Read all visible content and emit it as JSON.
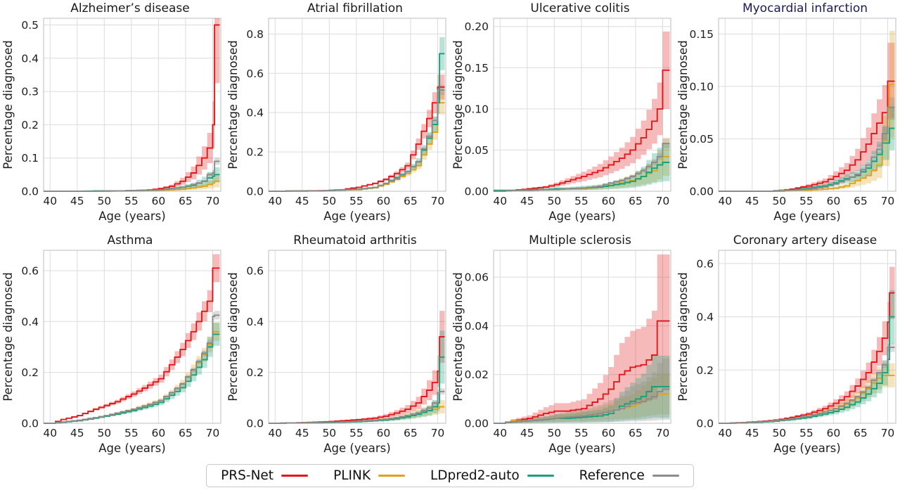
{
  "figure": {
    "background": "#ffffff",
    "grid_color": "#dcdcdc",
    "spine_color": "#c9c9c9",
    "band_alpha": 0.3,
    "tick_text_color": "#1f1f1f",
    "default_title_color": "#1a1a1a",
    "highlight_title_color": "#1b1b52"
  },
  "axes": {
    "xlabel": "Age (years)",
    "ylabel": "Percentage diagnosed",
    "x_ticks": [
      40,
      45,
      50,
      55,
      60,
      65,
      70
    ],
    "x_range": [
      38.8,
      71.5
    ],
    "control_ages": [
      40,
      42,
      45,
      48,
      50,
      52,
      55,
      58,
      60,
      62,
      64,
      66,
      68,
      69,
      70
    ]
  },
  "legend": {
    "items": [
      {
        "label": "PRS-Net",
        "color": "#e2191c"
      },
      {
        "label": "PLINK",
        "color": "#dfa21e"
      },
      {
        "label": "LDpred2-auto",
        "color": "#16a17b"
      },
      {
        "label": "Reference",
        "color": "#8b8b8b"
      }
    ]
  },
  "chart_data": [
    {
      "type": "line",
      "title": "Alzheimer’s disease",
      "title_color": "#1a1a1a",
      "ylim": [
        0,
        0.52
      ],
      "yticks": [
        0.0,
        0.1,
        0.2,
        0.3,
        0.4,
        0.5
      ],
      "ytick_decimals": 1,
      "series": [
        {
          "name": "PRS-Net",
          "values": [
            0,
            0,
            0,
            0,
            0.001,
            0.001,
            0.002,
            0.004,
            0.008,
            0.015,
            0.03,
            0.055,
            0.1,
            0.13,
            0.2
          ],
          "end": 0.5,
          "ci": 0.35
        },
        {
          "name": "PLINK",
          "values": [
            0,
            0,
            0,
            0,
            0,
            0.001,
            0.001,
            0.002,
            0.003,
            0.004,
            0.006,
            0.01,
            0.015,
            0.02,
            0.025
          ],
          "end": 0.03,
          "ci": 0.6
        },
        {
          "name": "LDpred2-auto",
          "values": [
            0,
            0,
            0,
            0.001,
            0.001,
            0.001,
            0.002,
            0.003,
            0.004,
            0.008,
            0.012,
            0.018,
            0.03,
            0.04,
            0.045
          ],
          "end": 0.05,
          "ci": 0.45
        },
        {
          "name": "Reference",
          "values": [
            0,
            0,
            0,
            0,
            0.001,
            0.001,
            0.002,
            0.003,
            0.004,
            0.008,
            0.012,
            0.02,
            0.03,
            0.05,
            0.055
          ],
          "end": 0.09,
          "ci": 0.12
        }
      ]
    },
    {
      "type": "line",
      "title": "Atrial fibrillation",
      "title_color": "#1a1a1a",
      "ylim": [
        0,
        0.88
      ],
      "yticks": [
        0.0,
        0.2,
        0.4,
        0.6,
        0.8
      ],
      "ytick_decimals": 1,
      "series": [
        {
          "name": "PRS-Net",
          "values": [
            0,
            0.001,
            0.002,
            0.003,
            0.005,
            0.008,
            0.02,
            0.04,
            0.06,
            0.09,
            0.13,
            0.24,
            0.37,
            0.45,
            0.53
          ],
          "end": 0.53,
          "ci": 0.12
        },
        {
          "name": "PLINK",
          "values": [
            0,
            0.001,
            0.001,
            0.002,
            0.004,
            0.006,
            0.008,
            0.018,
            0.035,
            0.06,
            0.09,
            0.13,
            0.24,
            0.3,
            0.45
          ],
          "end": 0.45,
          "ci": 0.13
        },
        {
          "name": "LDpred2-auto",
          "values": [
            0,
            0.001,
            0.001,
            0.002,
            0.004,
            0.006,
            0.01,
            0.02,
            0.04,
            0.07,
            0.1,
            0.15,
            0.27,
            0.34,
            0.45
          ],
          "end": 0.7,
          "ci": 0.12
        },
        {
          "name": "Reference",
          "values": [
            0,
            0.001,
            0.001,
            0.002,
            0.005,
            0.007,
            0.01,
            0.02,
            0.04,
            0.065,
            0.1,
            0.15,
            0.28,
            0.36,
            0.515
          ],
          "end": 0.515,
          "ci": 0.05
        }
      ]
    },
    {
      "type": "line",
      "title": "Ulcerative colitis",
      "title_color": "#1a1a1a",
      "ylim": [
        0,
        0.21
      ],
      "yticks": [
        0.0,
        0.05,
        0.1,
        0.15,
        0.2
      ],
      "ytick_decimals": 2,
      "series": [
        {
          "name": "PRS-Net",
          "values": [
            0.001,
            0.001,
            0.003,
            0.005,
            0.008,
            0.012,
            0.018,
            0.025,
            0.032,
            0.04,
            0.05,
            0.065,
            0.085,
            0.1,
            0.147
          ],
          "end": 0.147,
          "ci": 0.32
        },
        {
          "name": "PLINK",
          "values": [
            0,
            0.001,
            0.001,
            0.002,
            0.002,
            0.003,
            0.003,
            0.005,
            0.007,
            0.01,
            0.013,
            0.018,
            0.025,
            0.032,
            0.042
          ],
          "end": 0.042,
          "ci": 0.55
        },
        {
          "name": "LDpred2-auto",
          "values": [
            0.001,
            0.001,
            0.002,
            0.002,
            0.003,
            0.003,
            0.004,
            0.005,
            0.007,
            0.009,
            0.012,
            0.018,
            0.028,
            0.032,
            0.035
          ],
          "end": 0.035,
          "ci": 0.65
        },
        {
          "name": "Reference",
          "values": [
            0,
            0.001,
            0.001,
            0.002,
            0.002,
            0.003,
            0.004,
            0.006,
            0.01,
            0.013,
            0.018,
            0.025,
            0.035,
            0.042,
            0.058
          ],
          "end": 0.058,
          "ci": 0.1
        }
      ]
    },
    {
      "type": "line",
      "title": "Myocardial infarction",
      "title_color": "#1b1b52",
      "ylim": [
        0,
        0.165
      ],
      "yticks": [
        0.0,
        0.05,
        0.1,
        0.15
      ],
      "ytick_decimals": 2,
      "series": [
        {
          "name": "PRS-Net",
          "values": [
            0,
            0,
            0,
            0,
            0.001,
            0.002,
            0.005,
            0.009,
            0.014,
            0.02,
            0.03,
            0.045,
            0.065,
            0.075,
            0.105
          ],
          "end": 0.105,
          "ci": 0.35
        },
        {
          "name": "PLINK",
          "values": [
            0,
            0,
            0,
            0,
            0,
            0.001,
            0.001,
            0.002,
            0.003,
            0.005,
            0.01,
            0.015,
            0.025,
            0.048,
            0.048
          ],
          "end": 0.102,
          "ci": 0.5
        },
        {
          "name": "LDpred2-auto",
          "values": [
            0,
            0,
            0,
            0,
            0.001,
            0.001,
            0.003,
            0.005,
            0.008,
            0.012,
            0.015,
            0.022,
            0.035,
            0.046,
            0.046
          ],
          "end": 0.06,
          "ci": 0.35
        },
        {
          "name": "Reference",
          "values": [
            0,
            0,
            0,
            0,
            0.001,
            0.001,
            0.002,
            0.004,
            0.007,
            0.011,
            0.016,
            0.025,
            0.04,
            0.055,
            0.08
          ],
          "end": 0.08,
          "ci": 0.12
        }
      ]
    },
    {
      "type": "line",
      "title": "Asthma",
      "title_color": "#1a1a1a",
      "ylim": [
        0,
        0.68
      ],
      "yticks": [
        0.0,
        0.2,
        0.4,
        0.6
      ],
      "ytick_decimals": 1,
      "series": [
        {
          "name": "PRS-Net",
          "values": [
            0,
            0.015,
            0.03,
            0.055,
            0.07,
            0.085,
            0.115,
            0.15,
            0.175,
            0.23,
            0.29,
            0.36,
            0.44,
            0.48,
            0.61
          ],
          "end": 0.61,
          "ci": 0.09
        },
        {
          "name": "PLINK",
          "values": [
            0,
            0.005,
            0.012,
            0.022,
            0.03,
            0.04,
            0.055,
            0.075,
            0.09,
            0.12,
            0.155,
            0.21,
            0.27,
            0.31,
            0.36
          ],
          "end": 0.36,
          "ci": 0.1
        },
        {
          "name": "LDpred2-auto",
          "values": [
            0,
            0.004,
            0.01,
            0.02,
            0.028,
            0.036,
            0.05,
            0.068,
            0.082,
            0.11,
            0.14,
            0.19,
            0.25,
            0.3,
            0.35
          ],
          "end": 0.35,
          "ci": 0.13
        },
        {
          "name": "Reference",
          "values": [
            0,
            0.005,
            0.012,
            0.022,
            0.03,
            0.04,
            0.055,
            0.075,
            0.09,
            0.12,
            0.155,
            0.21,
            0.275,
            0.315,
            0.42
          ],
          "end": 0.425,
          "ci": 0.04
        }
      ]
    },
    {
      "type": "line",
      "title": "Rheumatoid arthritis",
      "title_color": "#1a1a1a",
      "ylim": [
        0,
        0.68
      ],
      "yticks": [
        0.0,
        0.2,
        0.4,
        0.6
      ],
      "ytick_decimals": 1,
      "series": [
        {
          "name": "PRS-Net",
          "values": [
            0,
            0.001,
            0.003,
            0.005,
            0.007,
            0.01,
            0.014,
            0.02,
            0.028,
            0.04,
            0.055,
            0.08,
            0.13,
            0.16,
            0.205
          ],
          "end": 0.34,
          "ci": 0.3
        },
        {
          "name": "PLINK",
          "values": [
            0,
            0.001,
            0.002,
            0.003,
            0.004,
            0.005,
            0.007,
            0.011,
            0.015,
            0.02,
            0.028,
            0.04,
            0.05,
            0.055,
            0.06
          ],
          "end": 0.065,
          "ci": 0.4
        },
        {
          "name": "LDpred2-auto",
          "values": [
            0,
            0.001,
            0.002,
            0.002,
            0.003,
            0.004,
            0.006,
            0.01,
            0.013,
            0.018,
            0.025,
            0.035,
            0.05,
            0.065,
            0.08
          ],
          "end": 0.26,
          "ci": 0.4
        },
        {
          "name": "Reference",
          "values": [
            0,
            0.001,
            0.002,
            0.003,
            0.004,
            0.005,
            0.008,
            0.012,
            0.016,
            0.022,
            0.03,
            0.04,
            0.06,
            0.08,
            0.12
          ],
          "end": 0.125,
          "ci": 0.1
        }
      ]
    },
    {
      "type": "line",
      "title": "Multiple sclerosis",
      "title_color": "#1a1a1a",
      "ylim": [
        0,
        0.071
      ],
      "yticks": [
        0.0,
        0.02,
        0.04,
        0.06
      ],
      "ytick_decimals": 2,
      "series": [
        {
          "name": "PRS-Net",
          "values": [
            0,
            0.001,
            0.002,
            0.004,
            0.005,
            0.005,
            0.006,
            0.01,
            0.014,
            0.02,
            0.023,
            0.024,
            0.028,
            0.042,
            0.042
          ],
          "end": 0.042,
          "ci": 0.65
        },
        {
          "name": "PLINK",
          "values": [
            0,
            0.001,
            0.001,
            0.0015,
            0.002,
            0.0025,
            0.003,
            0.004,
            0.005,
            0.006,
            0.007,
            0.009,
            0.011,
            0.012,
            0.012
          ],
          "end": 0.012,
          "ci": 0.7
        },
        {
          "name": "LDpred2-auto",
          "values": [
            0,
            0.0005,
            0.001,
            0.0015,
            0.002,
            0.002,
            0.0025,
            0.003,
            0.004,
            0.007,
            0.009,
            0.011,
            0.015,
            0.015,
            0.015
          ],
          "end": 0.015,
          "ci": 0.85
        },
        {
          "name": "Reference",
          "values": [
            0,
            0.0005,
            0.001,
            0.0015,
            0.002,
            0.0025,
            0.003,
            0.004,
            0.005,
            0.006,
            0.008,
            0.009,
            0.011,
            0.013,
            0.014
          ],
          "end": 0.014,
          "ci": 0.9
        }
      ]
    },
    {
      "type": "line",
      "title": "Coronary artery disease",
      "title_color": "#1a1a1a",
      "ylim": [
        0,
        0.65
      ],
      "yticks": [
        0.0,
        0.2,
        0.4,
        0.6
      ],
      "ytick_decimals": 1,
      "series": [
        {
          "name": "PRS-Net",
          "values": [
            0,
            0.002,
            0.005,
            0.01,
            0.015,
            0.022,
            0.035,
            0.055,
            0.075,
            0.1,
            0.14,
            0.19,
            0.27,
            0.32,
            0.38
          ],
          "end": 0.49,
          "ci": 0.2
        },
        {
          "name": "PLINK",
          "values": [
            0,
            0.001,
            0.004,
            0.008,
            0.012,
            0.017,
            0.027,
            0.042,
            0.055,
            0.072,
            0.095,
            0.13,
            0.17,
            0.18,
            0.18
          ],
          "end": 0.18,
          "ci": 0.25
        },
        {
          "name": "LDpred2-auto",
          "values": [
            0,
            0.001,
            0.003,
            0.006,
            0.01,
            0.014,
            0.022,
            0.035,
            0.045,
            0.06,
            0.08,
            0.11,
            0.15,
            0.19,
            0.24
          ],
          "end": 0.4,
          "ci": 0.25
        },
        {
          "name": "Reference",
          "values": [
            0,
            0.001,
            0.004,
            0.008,
            0.012,
            0.017,
            0.027,
            0.042,
            0.055,
            0.075,
            0.1,
            0.135,
            0.19,
            0.22,
            0.285
          ],
          "end": 0.285,
          "ci": 0.06
        }
      ]
    }
  ]
}
